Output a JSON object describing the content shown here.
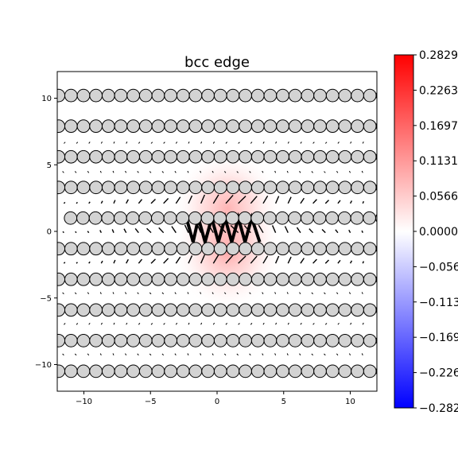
{
  "chart_data": {
    "type": "heatmap",
    "title": "bcc edge",
    "xlabel": "",
    "ylabel": "",
    "xlim": [
      -12,
      12
    ],
    "ylim": [
      -12,
      12
    ],
    "xticks": [
      -10,
      -5,
      0,
      5,
      10
    ],
    "yticks": [
      -10,
      -5,
      0,
      5,
      10
    ],
    "grid": false,
    "colormap": "bwr",
    "colorbar": {
      "min": -0.2829,
      "max": 0.2829,
      "ticks": [
        0.2829,
        0.2263,
        0.1697,
        0.1131,
        0.0566,
        0.0,
        -0.0566,
        -0.1131,
        -0.1697,
        -0.2263,
        -0.2829
      ],
      "tick_labels": [
        "0.2829",
        "0.2263",
        "0.1697",
        "0.1131",
        "0.0566",
        "0.0000",
        "-0.0566",
        "-0.1131",
        "-0.1697",
        "-0.2263",
        "-0.2829"
      ]
    },
    "field_peaks": [
      {
        "x": 0.8,
        "y": 1.7,
        "value": 0.08
      },
      {
        "x": 0.8,
        "y": -1.5,
        "value": 0.09
      }
    ],
    "atom_rows": [
      {
        "y": 10.2,
        "spacing": 0.935,
        "x0": -11.9,
        "color": "#d3d3d3"
      },
      {
        "y": 7.9,
        "spacing": 0.935,
        "x0": -11.9,
        "color": "#d3d3d3"
      },
      {
        "y": 5.6,
        "spacing": 0.935,
        "x0": -11.9,
        "color": "#d3d3d3"
      },
      {
        "y": 3.3,
        "spacing": 0.935,
        "x0": -11.9,
        "color": "#d3d3d3"
      },
      {
        "y": 1.0,
        "spacing": 0.935,
        "x0": -11.0,
        "color": "#d3d3d3"
      },
      {
        "y": -1.3,
        "spacing": 0.935,
        "x0": -11.9,
        "color": "#d3d3d3"
      },
      {
        "y": -3.6,
        "spacing": 0.935,
        "x0": -11.9,
        "color": "#d3d3d3"
      },
      {
        "y": -5.9,
        "spacing": 0.935,
        "x0": -11.9,
        "color": "#d3d3d3"
      },
      {
        "y": -8.2,
        "spacing": 0.935,
        "x0": -11.9,
        "color": "#d3d3d3"
      },
      {
        "y": -10.5,
        "spacing": 0.935,
        "x0": -11.9,
        "color": "#d3d3d3"
      }
    ],
    "vector_rows_y": [
      6.6,
      4.4,
      2.1,
      -0.1,
      -2.4,
      -4.7,
      -7.0,
      -9.3
    ],
    "strong_zigzag": {
      "x": [
        -2.3,
        -1.8,
        -1.4,
        -0.9,
        -0.4,
        0.1,
        0.6,
        1.1,
        1.6,
        2.1,
        2.6,
        3.2
      ],
      "y_top": 1.0,
      "y_bottom": -0.8
    }
  }
}
